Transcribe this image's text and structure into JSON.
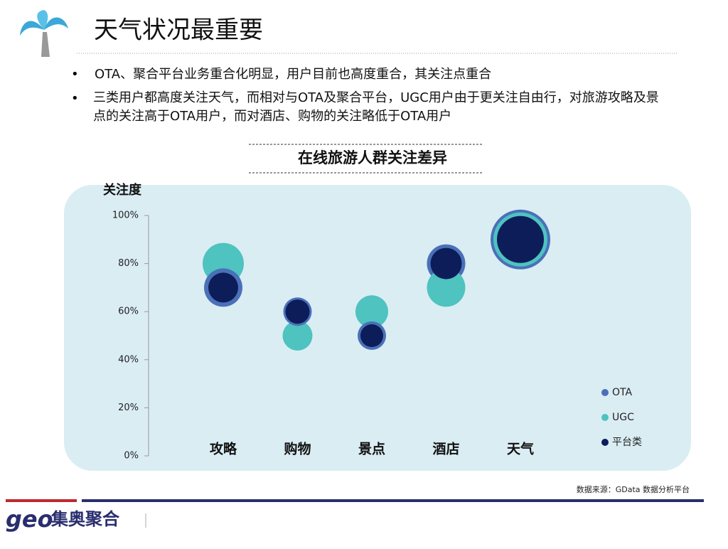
{
  "header": {
    "title": "天气状况最重要"
  },
  "bullets": [
    "OTA、聚合平台业务重合化明显，用户目前也高度重合，其关注点重合",
    "三类用户都高度关注天气，而相对与OTA及聚合平台，UGC用户由于更关注自由行，对旅游攻略及景点的关注高于OTA用户，而对酒店、购物的关注略低于OTA用户"
  ],
  "chart_data": {
    "type": "bubble",
    "title": "在线旅游人群关注差异",
    "y_label": "关注度",
    "categories": [
      "攻略",
      "购物",
      "景点",
      "酒店",
      "天气"
    ],
    "series": [
      {
        "name": "OTA",
        "color": "#4a70b8",
        "values": [
          70,
          60,
          50,
          80,
          90
        ],
        "sizes": [
          27,
          20,
          20,
          27,
          42
        ]
      },
      {
        "name": "UGC",
        "color": "#4ec3c0",
        "values": [
          80,
          50,
          60,
          70,
          90
        ],
        "sizes": [
          29,
          21,
          23,
          27,
          38
        ]
      },
      {
        "name": "平台类",
        "color": "#0c1d5a",
        "values": [
          70,
          60,
          50,
          80,
          90
        ],
        "sizes": [
          21,
          17,
          16,
          22,
          33
        ]
      }
    ],
    "ylim": [
      0,
      100
    ],
    "yticks": [
      {
        "value": 0,
        "label": "0%"
      },
      {
        "value": 20,
        "label": "20%"
      },
      {
        "value": 40,
        "label": "40%"
      },
      {
        "value": 60,
        "label": "60%"
      },
      {
        "value": 80,
        "label": "80%"
      },
      {
        "value": 100,
        "label": "100%"
      }
    ],
    "legend": "right"
  },
  "source": "数据来源：GData 数据分析平台",
  "footer": {
    "logo": "geo",
    "brand": "集奥聚合"
  }
}
